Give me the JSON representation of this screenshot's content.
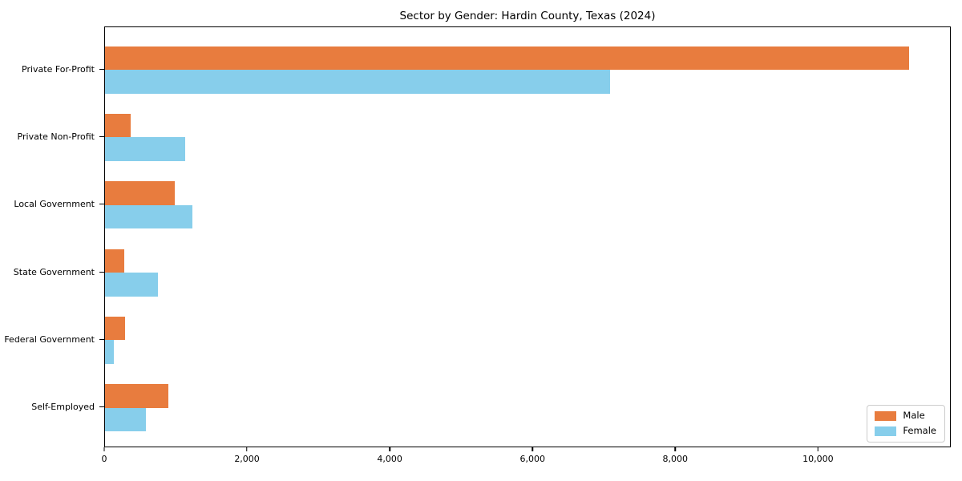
{
  "title": "Sector by Gender: Hardin County, Texas (2024)",
  "colors": {
    "male": "#e87c3e",
    "female": "#87ceeb",
    "axis": "#000000",
    "legend_border": "#cccccc",
    "background": "#ffffff"
  },
  "legend": {
    "position": "lower right",
    "items": [
      {
        "label": "Male",
        "color": "#e87c3e"
      },
      {
        "label": "Female",
        "color": "#87ceeb"
      }
    ]
  },
  "chart_data": {
    "type": "bar",
    "orientation": "horizontal",
    "title": "Sector by Gender: Hardin County, Texas (2024)",
    "categories": [
      "Private For-Profit",
      "Private Non-Profit",
      "Local Government",
      "State Government",
      "Federal Government",
      "Self-Employed"
    ],
    "series": [
      {
        "name": "Male",
        "color": "#e87c3e",
        "values": [
          11290,
          360,
          975,
          270,
          280,
          890
        ]
      },
      {
        "name": "Female",
        "color": "#87ceeb",
        "values": [
          7090,
          1120,
          1225,
          740,
          125,
          570
        ]
      }
    ],
    "xlim": [
      0,
      11860
    ],
    "xticks": [
      0,
      2000,
      4000,
      6000,
      8000,
      10000
    ],
    "xtick_labels": [
      "0",
      "2,000",
      "4,000",
      "6,000",
      "8,000",
      "10,000"
    ],
    "xlabel": "",
    "ylabel": "",
    "grid": false,
    "legend_position": "lower right"
  }
}
